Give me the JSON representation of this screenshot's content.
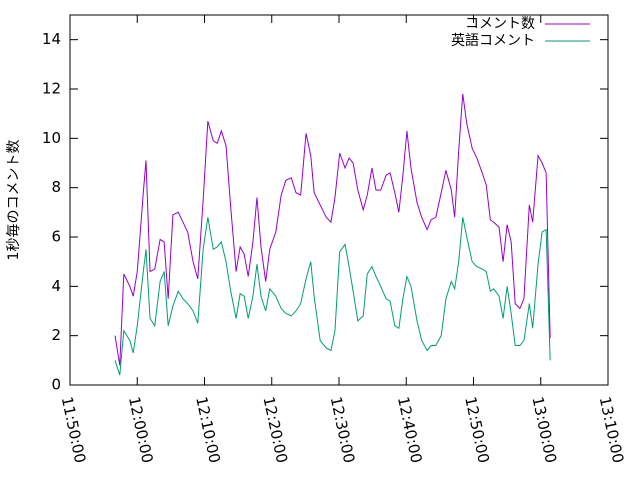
{
  "chart_data": {
    "type": "line",
    "y_label": "1秒毎のコメント数",
    "x": [
      "11:56:42",
      "11:57:24",
      "11:58:00",
      "11:58:54",
      "11:59:24",
      "12:00:00",
      "12:00:54",
      "12:01:18",
      "12:01:54",
      "12:02:36",
      "12:03:24",
      "12:04:00",
      "12:04:36",
      "12:05:18",
      "12:06:06",
      "12:06:48",
      "12:07:30",
      "12:08:18",
      "12:09:00",
      "12:09:48",
      "12:10:30",
      "12:11:18",
      "12:11:54",
      "12:12:30",
      "12:13:12",
      "12:13:54",
      "12:14:42",
      "12:15:18",
      "12:15:54",
      "12:16:30",
      "12:17:12",
      "12:17:48",
      "12:18:24",
      "12:19:06",
      "12:19:42",
      "12:20:36",
      "12:21:24",
      "12:22:06",
      "12:22:54",
      "12:23:36",
      "12:24:18",
      "12:25:06",
      "12:25:48",
      "12:26:18",
      "12:27:12",
      "12:28:06",
      "12:28:48",
      "12:29:24",
      "12:30:06",
      "12:30:54",
      "12:31:30",
      "12:32:06",
      "12:32:48",
      "12:33:36",
      "12:34:12",
      "12:34:54",
      "12:35:30",
      "12:36:12",
      "12:37:00",
      "12:37:36",
      "12:38:18",
      "12:38:54",
      "12:39:30",
      "12:40:06",
      "12:40:42",
      "12:41:36",
      "12:42:18",
      "12:43:06",
      "12:43:42",
      "12:44:24",
      "12:45:12",
      "12:45:54",
      "12:46:42",
      "12:47:12",
      "12:47:48",
      "12:48:24",
      "12:49:00",
      "12:49:48",
      "12:50:30",
      "12:51:18",
      "12:51:54",
      "12:52:30",
      "12:53:00",
      "12:53:48",
      "12:54:24",
      "12:55:00",
      "12:55:36",
      "12:56:12",
      "12:56:54",
      "12:57:30",
      "12:58:18",
      "12:58:48",
      "12:59:36",
      "13:00:12",
      "13:00:48",
      "13:01:24"
    ],
    "series": [
      {
        "name": "コメント数",
        "color": "#9400d3",
        "values": [
          2.0,
          0.8,
          4.5,
          4.0,
          3.6,
          4.6,
          7.8,
          9.1,
          4.6,
          4.7,
          5.9,
          5.8,
          3.5,
          6.9,
          7.0,
          6.6,
          6.2,
          5.0,
          4.3,
          7.5,
          10.7,
          9.9,
          9.8,
          10.3,
          9.7,
          7.2,
          4.6,
          5.6,
          5.3,
          4.4,
          5.8,
          7.6,
          5.6,
          4.2,
          5.5,
          6.2,
          7.7,
          8.3,
          8.4,
          7.8,
          7.7,
          10.2,
          9.3,
          7.8,
          7.3,
          6.8,
          6.6,
          7.6,
          9.4,
          8.8,
          9.2,
          9.0,
          7.9,
          7.1,
          7.7,
          8.8,
          7.9,
          7.9,
          8.5,
          8.6,
          7.8,
          7.0,
          8.5,
          10.3,
          8.8,
          7.4,
          6.8,
          6.3,
          6.7,
          6.8,
          7.8,
          8.7,
          7.9,
          6.8,
          9.5,
          11.8,
          10.6,
          9.6,
          9.2,
          8.6,
          8.1,
          6.7,
          6.6,
          6.4,
          5.0,
          6.5,
          5.8,
          3.3,
          3.1,
          3.5,
          7.3,
          6.6,
          9.3,
          9.0,
          8.6,
          1.9
        ]
      },
      {
        "name": "英語コメント",
        "color": "#009e73",
        "values": [
          1.0,
          0.4,
          2.2,
          1.8,
          1.3,
          2.4,
          4.6,
          5.5,
          2.7,
          2.4,
          4.2,
          4.6,
          2.4,
          3.2,
          3.8,
          3.5,
          3.3,
          3.0,
          2.5,
          5.5,
          6.8,
          5.5,
          5.6,
          5.8,
          5.0,
          3.8,
          2.7,
          3.7,
          3.6,
          2.7,
          3.6,
          4.9,
          3.6,
          3.0,
          3.9,
          3.6,
          3.1,
          2.9,
          2.8,
          3.0,
          3.3,
          4.3,
          5.0,
          3.6,
          1.8,
          1.5,
          1.4,
          2.2,
          5.4,
          5.7,
          4.8,
          3.8,
          2.6,
          2.8,
          4.5,
          4.8,
          4.4,
          4.0,
          3.5,
          3.4,
          2.4,
          2.3,
          3.5,
          4.4,
          4.0,
          2.6,
          1.8,
          1.4,
          1.6,
          1.6,
          2.0,
          3.5,
          4.2,
          3.9,
          5.0,
          6.8,
          6.0,
          5.0,
          4.8,
          4.7,
          4.6,
          3.8,
          3.9,
          3.6,
          2.7,
          4.0,
          2.9,
          1.6,
          1.6,
          1.8,
          3.3,
          2.3,
          4.9,
          6.2,
          6.3,
          1.0
        ]
      }
    ],
    "xlim": [
      "11:50:00",
      "13:10:00"
    ],
    "xticks": [
      "11:50:00",
      "12:00:00",
      "12:10:00",
      "12:20:00",
      "12:30:00",
      "12:40:00",
      "12:50:00",
      "13:00:00",
      "13:10:00"
    ],
    "ylim": [
      0,
      15
    ],
    "yticks": [
      0,
      2,
      4,
      6,
      8,
      10,
      12,
      14
    ],
    "legend": "top-right"
  }
}
